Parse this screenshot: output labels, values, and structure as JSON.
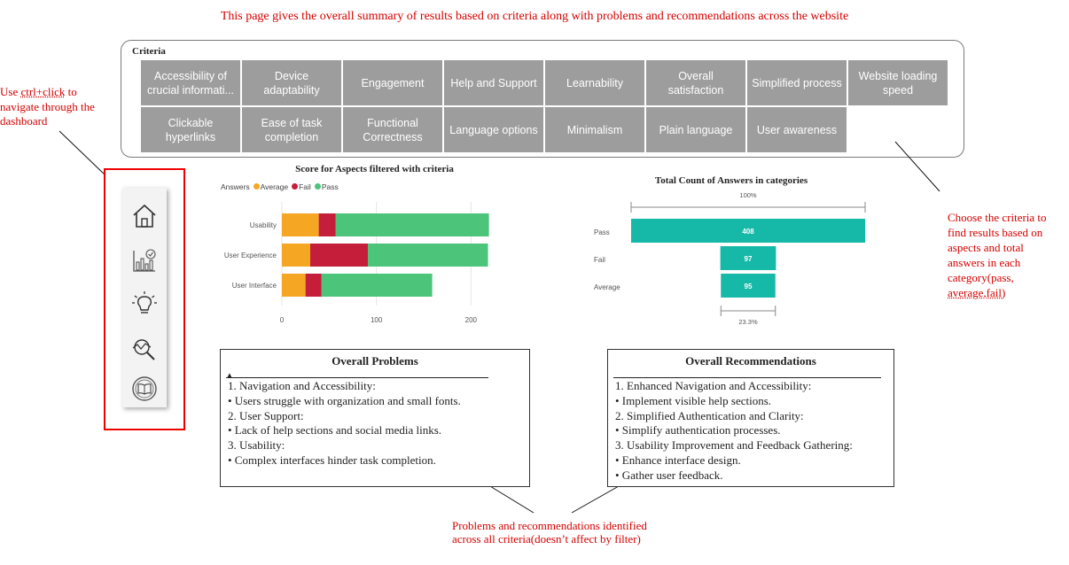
{
  "top_note": "This page gives the overall summary of results based on criteria along with problems and recommendations across the website",
  "left_note": {
    "l1": "Use ",
    "link": "ctrl+click",
    "l1b": " to",
    "l2": "navigate through the",
    "l3": "dashboard"
  },
  "right_note": {
    "l1": "Choose the criteria to",
    "l2": "find results based on",
    "l3": "aspects and total",
    "l4": "answers in each",
    "l5": "category(pass,",
    "l6": "average,fail)"
  },
  "bottom_note": {
    "l1": "Problems and recommendations identified",
    "l2": "across all criteria(doesn’t affect by filter)"
  },
  "criteria": {
    "title": "Criteria",
    "row1": [
      "Accessibility of crucial informati...",
      "Device adaptability",
      "Engagement",
      "Help and Support",
      "Learnability",
      "Overall satisfaction",
      "Simplified process",
      "Website loading speed"
    ],
    "row2": [
      "Clickable hyperlinks",
      "Ease of task completion",
      "Functional Correctness",
      "Language options",
      "Minimalism",
      "Plain language",
      "User awareness"
    ]
  },
  "nav": {
    "icons": [
      "home-icon",
      "report-chart-icon",
      "lightbulb-icon",
      "analytics-search-icon",
      "book-icon"
    ]
  },
  "colors": {
    "average": "#F5A623",
    "fail": "#C41E3A",
    "pass": "#4CC47A",
    "funnel": "#16B8A8",
    "accent": "#d40000"
  },
  "chart_data": [
    {
      "type": "bar",
      "orientation": "horizontal-stacked",
      "title": "Score for Aspects filtered with criteria",
      "legend_title": "Answers",
      "categories": [
        "Usability",
        "User Experience",
        "User Interface"
      ],
      "series": [
        {
          "name": "Average",
          "values": [
            39,
            30,
            25
          ]
        },
        {
          "name": "Fail",
          "values": [
            18,
            61,
            17
          ]
        },
        {
          "name": "Pass",
          "values": [
            162,
            127,
            117
          ]
        }
      ],
      "xticks": [
        0,
        100,
        200
      ],
      "xlim": [
        0,
        225
      ],
      "grid": true,
      "legend": "top-left"
    },
    {
      "type": "bar",
      "orientation": "funnel",
      "title": "Total Count of Answers in categories",
      "categories": [
        "Pass",
        "Fail",
        "Average"
      ],
      "values": [
        408,
        97,
        95
      ],
      "top_label": "100%",
      "bottom_label": "23.3%"
    }
  ],
  "problems": {
    "title": "Overall Problems",
    "lines": [
      "1. Navigation and Accessibility:",
      "• Users struggle with organization and small fonts.",
      "2. User Support:",
      "• Lack of help sections and social media links.",
      "3. Usability:",
      "• Complex interfaces hinder task completion."
    ]
  },
  "recommendations": {
    "title": "Overall Recommendations",
    "lines": [
      "1. Enhanced Navigation and Accessibility:",
      "• Implement visible help sections.",
      "2. Simplified Authentication and Clarity:",
      "• Simplify authentication processes.",
      "3. Usability Improvement and Feedback Gathering:",
      "• Enhance interface design.",
      "• Gather user feedback."
    ]
  }
}
